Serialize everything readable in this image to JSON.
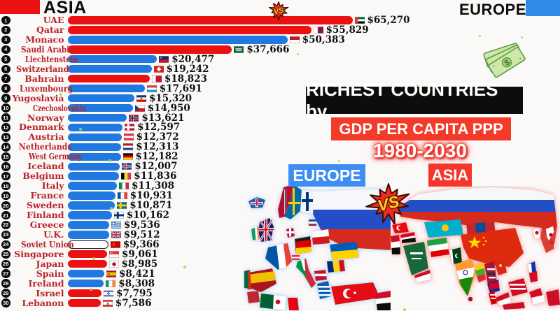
{
  "header": {
    "asia_label": "ASIA",
    "europe_label": "EUROPE",
    "asia_color": "#ec1212",
    "europe_color": "#2e8be8"
  },
  "title": {
    "line1": "RICHEST COUNTRIES by",
    "line2": "GDP PER CAPITA PPP",
    "line3": "1980-2030"
  },
  "map_section": {
    "europe_label": "EUROPE",
    "asia_label": "ASIA",
    "vs_label": "VS"
  },
  "decor": {
    "money_symbol": "$"
  },
  "chart_data": {
    "type": "bar",
    "orientation": "horizontal",
    "value_unit": "USD (GDP per capita PPP)",
    "max_value": 65270,
    "legend": [
      {
        "label": "ASIA",
        "color": "#ec1111"
      },
      {
        "label": "EUROPE",
        "color": "#2079e0"
      }
    ],
    "rows": [
      {
        "rank": 1,
        "country": "UAE",
        "region": "asia",
        "value": 65270,
        "value_label": "$65,270",
        "flag": "uae"
      },
      {
        "rank": 2,
        "country": "Qatar",
        "region": "asia",
        "value": 55829,
        "value_label": "$55,829",
        "flag": "qatar"
      },
      {
        "rank": 3,
        "country": "Monaco",
        "region": "europe",
        "value": 50383,
        "value_label": "$50,383",
        "flag": "monaco"
      },
      {
        "rank": 4,
        "country": "Saudi Arabia",
        "region": "asia",
        "value": 37666,
        "value_label": "$37,666",
        "flag": "saudi_arabia"
      },
      {
        "rank": 5,
        "country": "Liechtenstein",
        "region": "europe",
        "value": 20477,
        "value_label": "$20,477",
        "flag": "liechtenstein"
      },
      {
        "rank": 6,
        "country": "Switzerland",
        "region": "europe",
        "value": 19242,
        "value_label": "$19,242",
        "flag": "switzerland"
      },
      {
        "rank": 7,
        "country": "Bahrain",
        "region": "asia",
        "value": 18823,
        "value_label": "$18,823",
        "flag": "bahrain"
      },
      {
        "rank": 8,
        "country": "Luxembourg",
        "region": "europe",
        "value": 17691,
        "value_label": "$17,691",
        "flag": "luxembourg"
      },
      {
        "rank": 9,
        "country": "Yugoslavia",
        "region": "europe",
        "value": 15320,
        "value_label": "$15,320",
        "flag": "yugoslavia"
      },
      {
        "rank": 10,
        "country": "Czechoslovakia",
        "region": "europe",
        "value": 14950,
        "value_label": "$14,950",
        "flag": "czechoslovakia"
      },
      {
        "rank": 11,
        "country": "Norway",
        "region": "europe",
        "value": 13621,
        "value_label": "$13,621",
        "flag": "norway"
      },
      {
        "rank": 12,
        "country": "Denmark",
        "region": "europe",
        "value": 12597,
        "value_label": "$12,597",
        "flag": "denmark"
      },
      {
        "rank": 13,
        "country": "Austria",
        "region": "europe",
        "value": 12372,
        "value_label": "$12,372",
        "flag": "austria"
      },
      {
        "rank": 14,
        "country": "Netherlands",
        "region": "europe",
        "value": 12313,
        "value_label": "$12,313",
        "flag": "netherlands"
      },
      {
        "rank": 15,
        "country": "West Germany",
        "region": "europe",
        "value": 12182,
        "value_label": "$12,182",
        "flag": "west_germany"
      },
      {
        "rank": 16,
        "country": "Iceland",
        "region": "europe",
        "value": 12007,
        "value_label": "$12,007",
        "flag": "iceland"
      },
      {
        "rank": 17,
        "country": "Belgium",
        "region": "europe",
        "value": 11836,
        "value_label": "$11,836",
        "flag": "belgium"
      },
      {
        "rank": 18,
        "country": "Italy",
        "region": "europe",
        "value": 11308,
        "value_label": "$11,308",
        "flag": "italy"
      },
      {
        "rank": 19,
        "country": "France",
        "region": "europe",
        "value": 10931,
        "value_label": "$10,931",
        "flag": "france"
      },
      {
        "rank": 20,
        "country": "Sweden",
        "region": "europe",
        "value": 10871,
        "value_label": "$10,871",
        "flag": "sweden"
      },
      {
        "rank": 21,
        "country": "Finland",
        "region": "europe",
        "value": 10162,
        "value_label": "$10,162",
        "flag": "finland"
      },
      {
        "rank": 22,
        "country": "Greece",
        "region": "europe",
        "value": 9536,
        "value_label": "$9,536",
        "flag": "greece"
      },
      {
        "rank": 23,
        "country": "U.K.",
        "region": "europe",
        "value": 9512,
        "value_label": "$9,512",
        "flag": "uk"
      },
      {
        "rank": 24,
        "country": "Soviet Union",
        "region": "both",
        "value": 9366,
        "value_label": "$9,366",
        "flag": "soviet_union"
      },
      {
        "rank": 25,
        "country": "Singapore",
        "region": "asia",
        "value": 9061,
        "value_label": "$9,061",
        "flag": "singapore"
      },
      {
        "rank": 26,
        "country": "Japan",
        "region": "asia",
        "value": 8985,
        "value_label": "$8,985",
        "flag": "japan"
      },
      {
        "rank": 27,
        "country": "Spain",
        "region": "europe",
        "value": 8421,
        "value_label": "$8,421",
        "flag": "spain"
      },
      {
        "rank": 28,
        "country": "Ireland",
        "region": "europe",
        "value": 8308,
        "value_label": "$8,308",
        "flag": "ireland"
      },
      {
        "rank": 29,
        "country": "Israel",
        "region": "asia",
        "value": 7795,
        "value_label": "$7,795",
        "flag": "israel"
      },
      {
        "rank": 30,
        "country": "Lebanon",
        "region": "asia",
        "value": 7586,
        "value_label": "$7,586",
        "flag": "lebanon"
      }
    ]
  }
}
